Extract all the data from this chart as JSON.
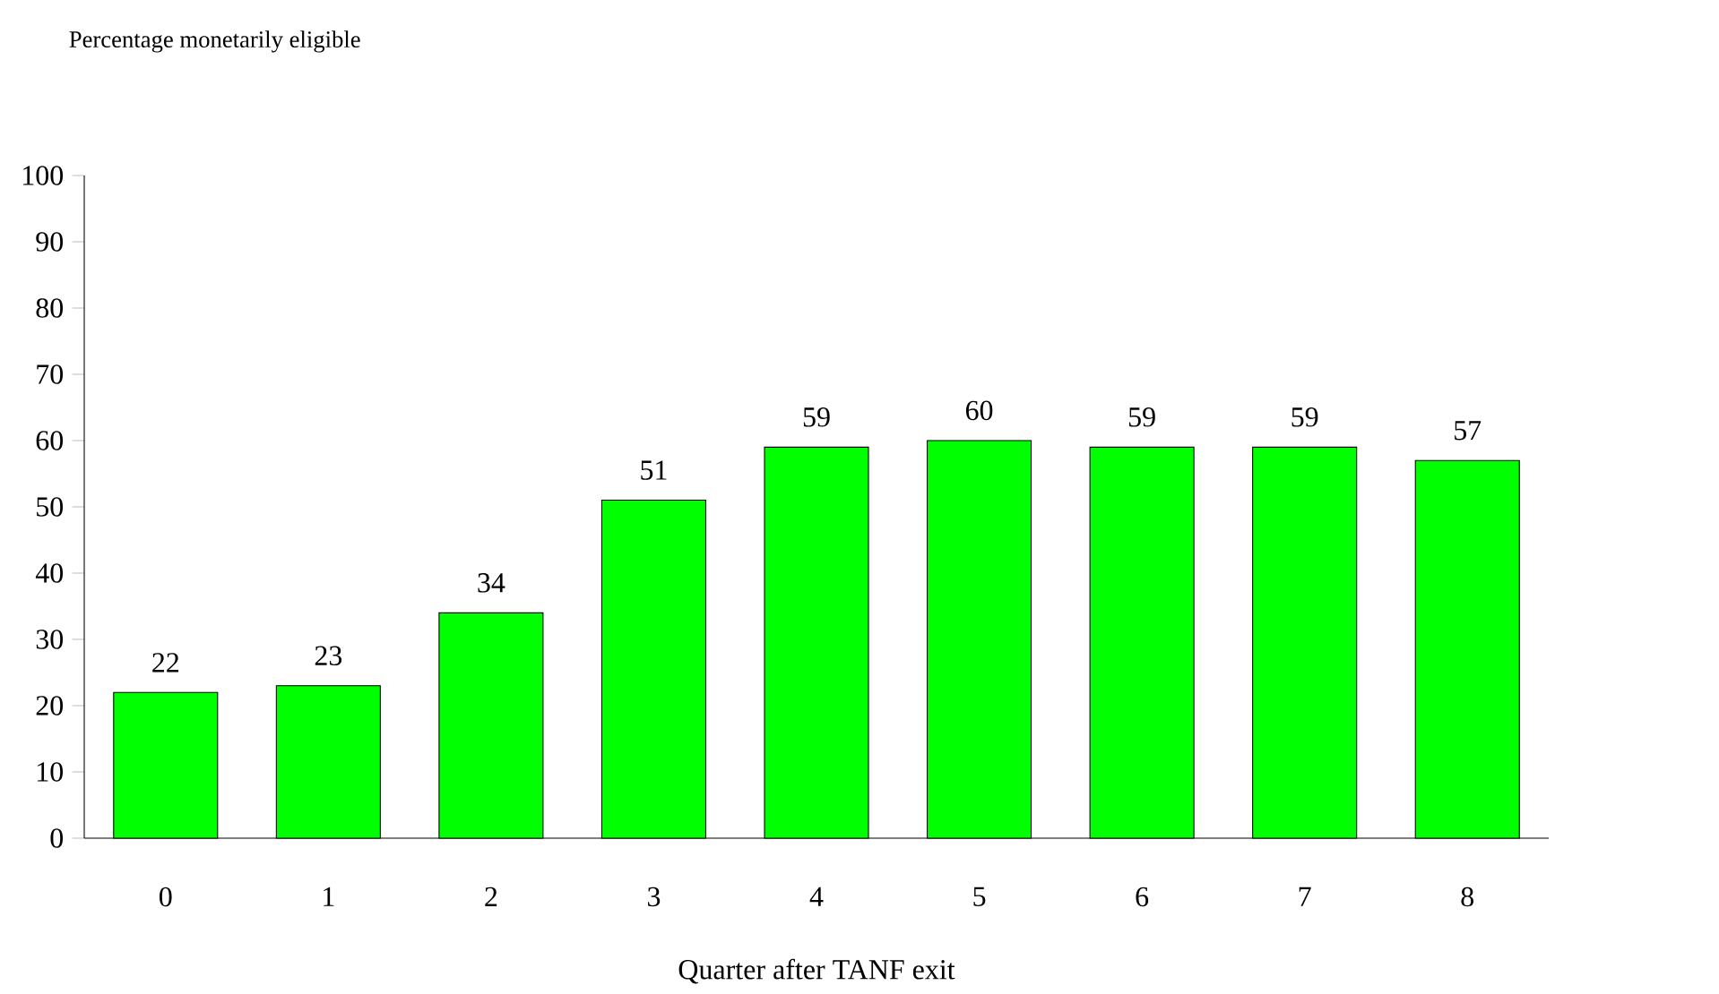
{
  "chart_data": {
    "type": "bar",
    "xlabel": "Quarter after TANF exit",
    "ylabel": "Percentage monetarily eligible",
    "categories": [
      "0",
      "1",
      "2",
      "3",
      "4",
      "5",
      "6",
      "7",
      "8"
    ],
    "values": [
      22,
      23,
      34,
      51,
      59,
      60,
      59,
      59,
      57
    ],
    "color": "#00ff00",
    "ylim": [
      0,
      100
    ],
    "yticks": [
      0,
      10,
      20,
      30,
      40,
      50,
      60,
      70,
      80,
      90,
      100
    ],
    "data_labels": true
  }
}
